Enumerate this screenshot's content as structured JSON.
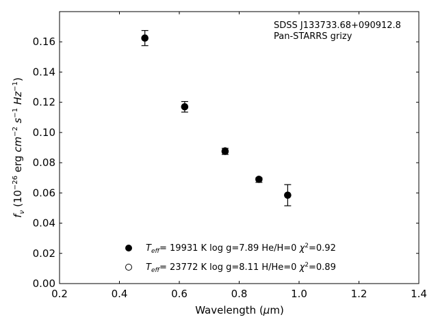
{
  "chart_data": {
    "type": "scatter",
    "annotation": [
      "SDSS J133733.68+090912.8",
      "Pan-STARRS grizy"
    ],
    "xlabel": {
      "pre": "Wavelength (",
      "sym": "μ",
      "post": "m)"
    },
    "ylabel": {
      "f": "f",
      "nu": "ν",
      "a": " (10",
      "e1": "−26",
      "b": " erg ",
      "cm": "cm",
      "e2": "−2",
      "s": "s",
      "e3": "−1",
      "hz": "Hz",
      "e4": "−1",
      "close": ")"
    },
    "xlim": [
      0.2,
      1.4
    ],
    "ylim": [
      0.0,
      0.18
    ],
    "xticks": [
      "0.2",
      "0.4",
      "0.6",
      "0.8",
      "1.0",
      "1.2",
      "1.4"
    ],
    "yticks": [
      "0.00",
      "0.02",
      "0.04",
      "0.06",
      "0.08",
      "0.10",
      "0.12",
      "0.14",
      "0.16"
    ],
    "xtick_values": [
      0.2,
      0.4,
      0.6,
      0.8,
      1.0,
      1.2,
      1.4
    ],
    "ytick_values": [
      0.0,
      0.02,
      0.04,
      0.06,
      0.08,
      0.1,
      0.12,
      0.14,
      0.16
    ],
    "observed": {
      "x": [
        0.485,
        0.618,
        0.753,
        0.866,
        0.962
      ],
      "y": [
        0.1625,
        0.117,
        0.0875,
        0.0685,
        0.0585
      ],
      "err": [
        0.005,
        0.0035,
        0.002,
        0.0015,
        0.007
      ]
    },
    "series": [
      {
        "name": {
          "T": "T",
          "sub": "eff",
          "rest": "= 19931 K  log g=7.89  He/H=0  ",
          "chi": "χ",
          "sup": "2",
          "end": "=0.92"
        },
        "marker": "filled",
        "x": [
          0.485,
          0.618,
          0.753,
          0.866,
          0.962
        ],
        "y": [
          0.1625,
          0.117,
          0.0875,
          0.069,
          0.0585
        ]
      },
      {
        "name": {
          "T": "T",
          "sub": "eff",
          "rest": "= 23772 K  log g=8.11  H/He=0  ",
          "chi": "χ",
          "sup": "2",
          "end": "=0.89"
        },
        "marker": "open",
        "x": [
          0.485,
          0.618,
          0.753,
          0.866,
          0.962
        ],
        "y": [
          0.1625,
          0.117,
          0.088,
          0.069,
          0.0585
        ]
      }
    ],
    "grid": false,
    "legend": "bottom-center",
    "color": "#000000"
  }
}
